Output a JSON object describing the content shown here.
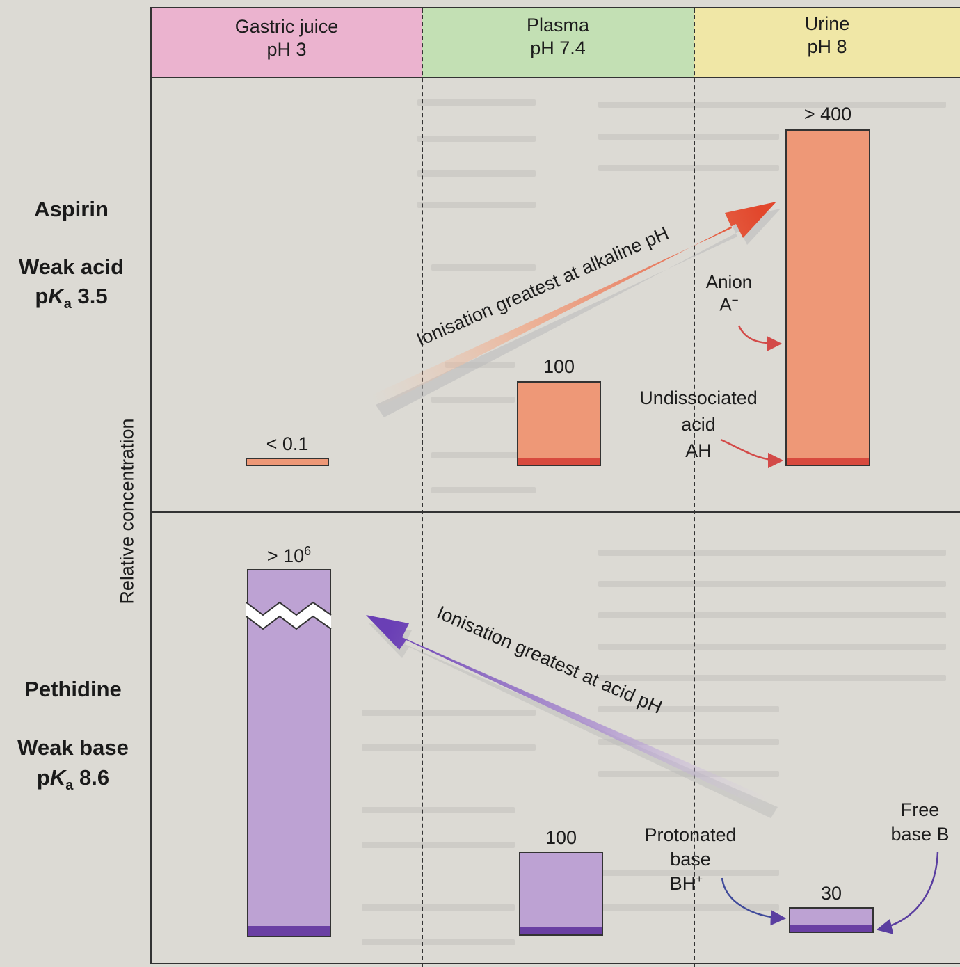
{
  "columns": [
    {
      "name": "Gastric juice",
      "ph": "pH 3",
      "color": "#ebb3cf"
    },
    {
      "name": "Plasma",
      "ph": "pH 7.4",
      "color": "#c3e0b4"
    },
    {
      "name": "Urine",
      "ph": "pH 8",
      "color": "#f0e7a6"
    }
  ],
  "axis_label": "Relative concentration",
  "aspirin": {
    "name": "Aspirin",
    "class": "Weak acid",
    "pka_prefix": "p",
    "pka_k": "K",
    "pka_sub": "a",
    "pka_value": " 3.5",
    "values": {
      "gastric": "< 0.1",
      "plasma": "100",
      "urine": "> 400"
    },
    "arrow_text": "Ionisation greatest at alkaline pH",
    "anion_label": "Anion",
    "anion_symbol": "A",
    "anion_charge": "−",
    "undissociated_lines": [
      "Undissociated",
      "acid",
      "AH"
    ],
    "bar_color": "#ee9877",
    "ionised_color": "#d84a3e"
  },
  "pethidine": {
    "name": "Pethidine",
    "class": "Weak base",
    "pka_prefix": "p",
    "pka_k": "K",
    "pka_sub": "a",
    "pka_value": " 8.6",
    "values": {
      "gastric_base": "> 10",
      "gastric_exp": "6",
      "plasma": "100",
      "urine": "30"
    },
    "arrow_text": "Ionisation greatest at acid pH",
    "protonated_lines": [
      "Protonated",
      "base"
    ],
    "protonated_symbol": "BH",
    "protonated_charge": "+",
    "free_base_lines": [
      "Free",
      "base B"
    ],
    "bar_color": "#bda2d3",
    "base_color": "#6a3fa3"
  }
}
